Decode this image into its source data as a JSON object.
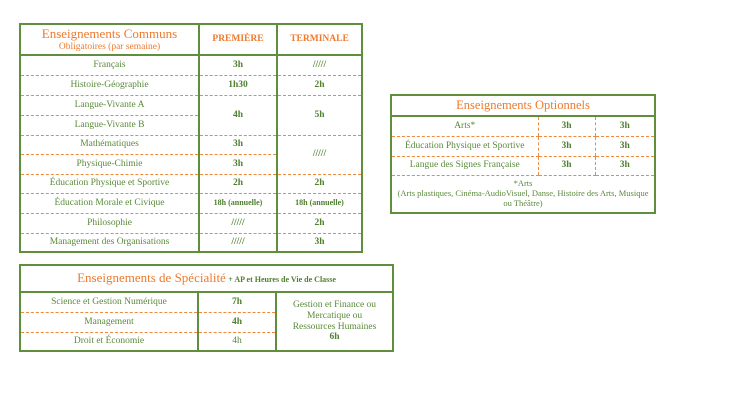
{
  "communs": {
    "title": "Enseignements Communs",
    "subtitle": "Obligatoires (par semaine)",
    "col1": "PREMIÈRE",
    "col2": "TERMINALE",
    "rows": [
      {
        "label": "Français",
        "p": "3h",
        "t": "/////"
      },
      {
        "label": "Histoire-Géographie",
        "p": "1h30",
        "t": "2h"
      },
      {
        "label": "Langue-Vivante A",
        "p": "4h",
        "t": "5h"
      },
      {
        "label": "Langue-Vivante B"
      },
      {
        "label": "Mathématiques",
        "p": "3h",
        "t": "/////"
      },
      {
        "label": "Physique-Chimie",
        "p": "3h"
      },
      {
        "label": "Éducation Physique et Sportive",
        "p": "2h",
        "t": "2h"
      },
      {
        "label": "Éducation Morale et Civique",
        "p": "18h (annuelle)",
        "t": "18h (annuelle)"
      },
      {
        "label": "Philosophie",
        "p": "/////",
        "t": "2h"
      },
      {
        "label": "Management des Organisations",
        "p": "/////",
        "t": "3h"
      }
    ]
  },
  "specialite": {
    "title": "Enseignements de Spécialité",
    "subtitle": "+ AP et Heures de Vie de Classe",
    "rows": [
      {
        "label": "Science et Gestion Numérique",
        "p": "7h"
      },
      {
        "label": "Management",
        "p": "4h"
      },
      {
        "label": "Droit et Économie",
        "p": "4h"
      }
    ],
    "terminale_text": "Gestion et Finance ou Mercatique ou Ressources Humaines",
    "terminale_hours": "6h"
  },
  "optionnels": {
    "title": "Enseignements Optionnels",
    "rows": [
      {
        "label": "Arts*",
        "p": "3h",
        "t": "3h"
      },
      {
        "label": "Éducation Physique et Sportive",
        "p": "3h",
        "t": "3h"
      },
      {
        "label": "Langue des Signes Française",
        "p": "3h",
        "t": "3h"
      }
    ],
    "footnote_title": "*Arts",
    "footnote": "(Arts plastiques, Cinéma-AudioVisuel, Danse, Histoire des Arts, Musique ou Théâtre)"
  }
}
